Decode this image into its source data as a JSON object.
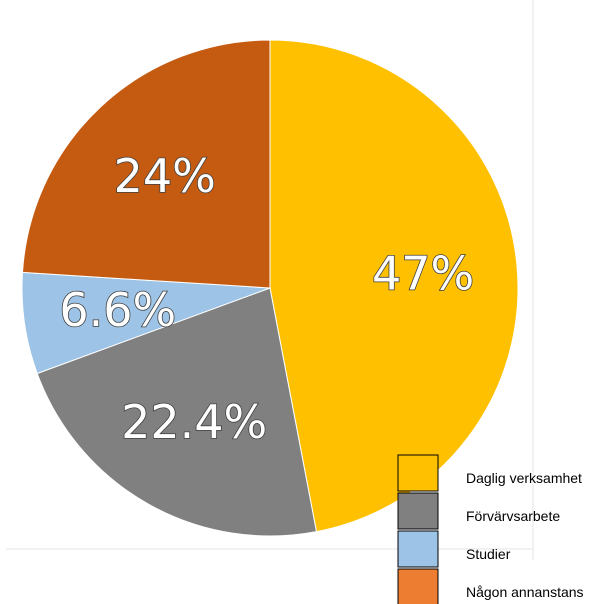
{
  "chart_data": {
    "type": "pie",
    "categories": [
      "Daglig verksamhet",
      "Förvärvsarbete",
      "Studier",
      "Någon annanstans"
    ],
    "values": [
      47,
      22.4,
      6.6,
      24
    ],
    "data_labels": [
      "47%",
      "22.4%",
      "6.6%",
      "24%"
    ],
    "colors": [
      "#FFC000",
      "#808080",
      "#9DC3E6",
      "#C55A11"
    ],
    "legend_colors": [
      "#FFC000",
      "#808080",
      "#9DC3E6",
      "#ED7D31"
    ],
    "start_angle_deg": 0,
    "direction": "clockwise",
    "legend_position": "bottom-right"
  }
}
